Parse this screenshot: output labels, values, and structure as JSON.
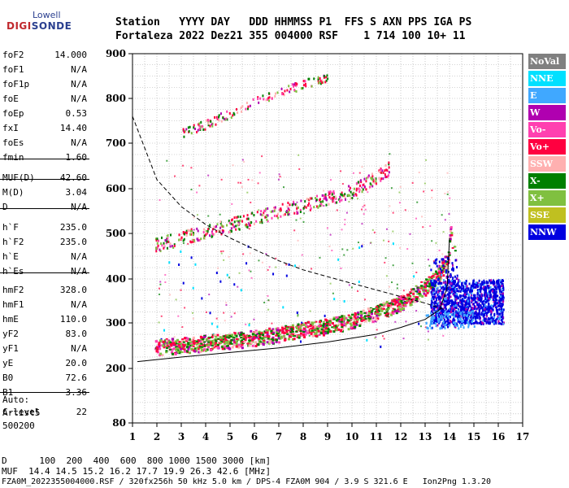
{
  "logo": {
    "top": "Lowell",
    "main_a": "DIGI",
    "main_b": "SONDE"
  },
  "header": {
    "line1": "Station   YYYY DAY   DDD HHMMSS P1  FFS S AXN PPS IGA PS",
    "line2": "Fortaleza 2022 Dez21 355 004000 RSF    1 714 100 10+ 11"
  },
  "params": [
    {
      "k": "foF2",
      "v": "14.000"
    },
    {
      "k": "foF1",
      "v": "N/A"
    },
    {
      "k": "foF1p",
      "v": "N/A"
    },
    {
      "k": "foE",
      "v": "N/A"
    },
    {
      "k": "foEp",
      "v": "0.53"
    },
    {
      "k": "fxI",
      "v": "14.40"
    },
    {
      "k": "foEs",
      "v": "N/A"
    },
    {
      "k": "fmin",
      "v": "1.60"
    },
    {
      "k": "MUF(D)",
      "v": "42.60"
    },
    {
      "k": "M(D)",
      "v": "3.04"
    },
    {
      "k": "D",
      "v": "N/A"
    },
    {
      "k": "h`F",
      "v": "235.0"
    },
    {
      "k": "h`F2",
      "v": "235.0"
    },
    {
      "k": "h`E",
      "v": "N/A"
    },
    {
      "k": "h`Es",
      "v": "N/A"
    },
    {
      "k": "hmF2",
      "v": "328.0"
    },
    {
      "k": "hmF1",
      "v": "N/A"
    },
    {
      "k": "hmE",
      "v": "110.0"
    },
    {
      "k": "yF2",
      "v": "83.0"
    },
    {
      "k": "yF1",
      "v": "N/A"
    },
    {
      "k": "yE",
      "v": "20.0"
    },
    {
      "k": "B0",
      "v": "72.6"
    },
    {
      "k": "B1",
      "v": "3.36"
    },
    {
      "k": "C-level",
      "v": "22"
    }
  ],
  "auto": {
    "l1": "Auto:",
    "l2": "Artist5",
    "l3": "500200"
  },
  "legend": [
    {
      "label": "NoVal",
      "color": "#808080"
    },
    {
      "label": "NNE",
      "color": "#00e0ff"
    },
    {
      "label": "E",
      "color": "#40a8ff"
    },
    {
      "label": "W",
      "color": "#b000b0"
    },
    {
      "label": "Vo-",
      "color": "#ff40b0"
    },
    {
      "label": "Vo+",
      "color": "#ff0040"
    },
    {
      "label": "SSW",
      "color": "#ffb0b0"
    },
    {
      "label": "X-",
      "color": "#008000"
    },
    {
      "label": "X+",
      "color": "#80c040"
    },
    {
      "label": "SSE",
      "color": "#c0c020"
    },
    {
      "label": "NNW",
      "color": "#0000e0"
    }
  ],
  "footer": {
    "line1": "D      100  200  400  600  800 1000 1500 3000 [km]",
    "line2": "MUF  14.4 14.5 15.2 16.2 17.7 19.9 26.3 42.6 [MHz]",
    "line3": "FZA0M_2022355004000.RSF / 320fx256h 50 kHz 5.0 km / DPS-4 FZA0M 904 / 3.9 S 321.6 E   Ion2Png 1.3.20"
  },
  "chart_data": {
    "type": "scatter",
    "xlim": [
      1,
      17
    ],
    "ylim": [
      80,
      900
    ],
    "x_ticks": [
      1,
      2,
      3,
      4,
      5,
      6,
      7,
      8,
      9,
      10,
      11,
      12,
      13,
      14,
      15,
      16,
      17
    ],
    "y_ticks": [
      80,
      200,
      300,
      400,
      500,
      600,
      700,
      800,
      900
    ],
    "grid": true,
    "o_trace": [
      [
        1.9,
        240
      ],
      [
        3,
        245
      ],
      [
        4,
        250
      ],
      [
        5,
        255
      ],
      [
        6,
        262
      ],
      [
        7,
        270
      ],
      [
        8,
        278
      ],
      [
        9,
        288
      ],
      [
        10,
        300
      ],
      [
        11,
        318
      ],
      [
        12,
        340
      ],
      [
        13,
        375
      ],
      [
        13.5,
        400
      ],
      [
        13.9,
        440
      ],
      [
        14.05,
        510
      ]
    ],
    "x_trace": [
      [
        2.3,
        240
      ],
      [
        4,
        252
      ],
      [
        6,
        265
      ],
      [
        8,
        282
      ],
      [
        10,
        305
      ],
      [
        12,
        345
      ],
      [
        13.5,
        405
      ],
      [
        14.2,
        470
      ]
    ],
    "second_hop": [
      [
        1.9,
        470
      ],
      [
        4,
        500
      ],
      [
        6,
        530
      ],
      [
        8,
        560
      ],
      [
        10,
        590
      ],
      [
        11.5,
        640
      ]
    ],
    "third_hop": [
      [
        3,
        720
      ],
      [
        4,
        740
      ],
      [
        5,
        765
      ],
      [
        6,
        790
      ],
      [
        7,
        810
      ],
      [
        8,
        830
      ],
      [
        9,
        845
      ]
    ],
    "nnw_spread": {
      "f_range": [
        13.2,
        16.2
      ],
      "h_range": [
        300,
        400
      ]
    },
    "profile_curve": [
      [
        1.2,
        215
      ],
      [
        3,
        225
      ],
      [
        5,
        235
      ],
      [
        7,
        245
      ],
      [
        9,
        258
      ],
      [
        11,
        275
      ],
      [
        12,
        290
      ],
      [
        13,
        308
      ],
      [
        13.6,
        330
      ],
      [
        13.9,
        380
      ],
      [
        14.0,
        490
      ]
    ],
    "dashed_curve": [
      [
        1,
        760
      ],
      [
        2,
        620
      ],
      [
        3,
        560
      ],
      [
        4,
        520
      ],
      [
        5,
        490
      ],
      [
        6,
        465
      ],
      [
        7,
        440
      ],
      [
        8,
        420
      ],
      [
        9,
        405
      ],
      [
        10,
        390
      ],
      [
        11,
        375
      ],
      [
        12,
        360
      ],
      [
        13,
        345
      ],
      [
        13.8,
        330
      ]
    ]
  }
}
